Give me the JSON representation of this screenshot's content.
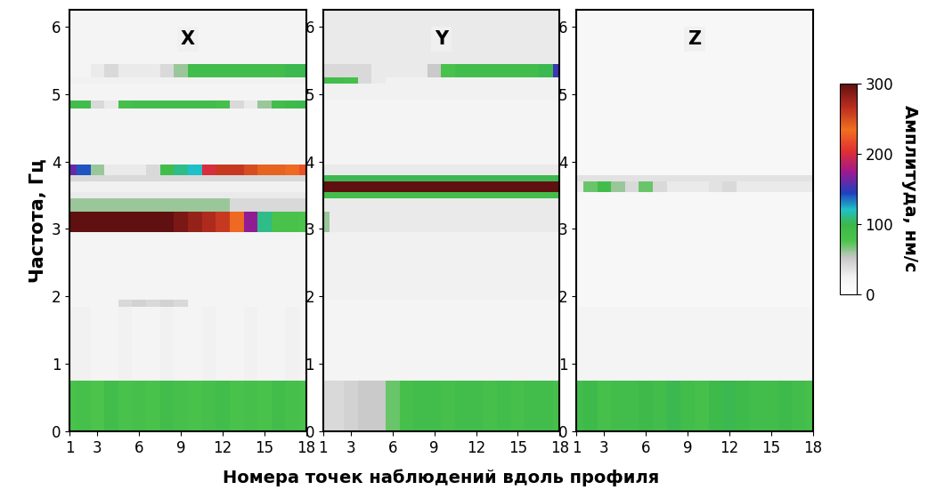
{
  "figure": {
    "xlabel": "Номера точек наблюдений вдоль профиля",
    "ylabel": "Частота, Гц",
    "colorbar": {
      "label": "Амплитуда, нм/с",
      "range": [
        0,
        300
      ],
      "ticks": [
        0,
        100,
        200,
        300
      ]
    }
  },
  "chart_data": [
    {
      "type": "heatmap",
      "title": "X",
      "x": [
        1,
        2,
        3,
        4,
        5,
        6,
        7,
        8,
        9,
        10,
        11,
        12,
        13,
        14,
        15,
        16,
        17,
        18
      ],
      "y_edges": [
        0,
        0.75,
        1.85,
        1.95,
        2.95,
        3.25,
        3.45,
        3.55,
        3.7,
        3.8,
        3.95,
        4.78,
        4.9,
        5.15,
        5.25,
        5.45,
        6.25
      ],
      "xlim": [
        1,
        18
      ],
      "xticks": [
        1,
        3,
        6,
        9,
        12,
        15,
        18
      ],
      "ylim": [
        0,
        6.25
      ],
      "yticks": [
        0,
        1,
        2,
        3,
        4,
        5,
        6
      ],
      "cells": [
        [
          80,
          85,
          75,
          90,
          80,
          85,
          80,
          90,
          85,
          80,
          85,
          90,
          80,
          85,
          80,
          90,
          85,
          80
        ],
        [
          25,
          25,
          20,
          20,
          25,
          20,
          20,
          25,
          20,
          20,
          25,
          20,
          20,
          25,
          20,
          20,
          25,
          20
        ],
        [
          20,
          20,
          20,
          20,
          40,
          45,
          40,
          45,
          40,
          20,
          20,
          20,
          20,
          20,
          20,
          20,
          20,
          20
        ],
        [
          20,
          20,
          20,
          20,
          20,
          20,
          20,
          20,
          20,
          20,
          20,
          20,
          20,
          20,
          20,
          20,
          20,
          20
        ],
        [
          300,
          300,
          300,
          300,
          300,
          300,
          300,
          300,
          290,
          280,
          270,
          260,
          230,
          170,
          110,
          80,
          80,
          75
        ],
        [
          60,
          60,
          60,
          60,
          60,
          60,
          60,
          60,
          60,
          60,
          60,
          60,
          40,
          40,
          40,
          40,
          40,
          40
        ],
        [
          30,
          30,
          30,
          30,
          30,
          30,
          30,
          30,
          30,
          30,
          30,
          30,
          30,
          30,
          30,
          30,
          30,
          30
        ],
        [
          25,
          25,
          25,
          25,
          25,
          25,
          25,
          25,
          25,
          25,
          25,
          25,
          25,
          25,
          25,
          25,
          25,
          25
        ],
        [
          40,
          40,
          40,
          40,
          40,
          40,
          40,
          40,
          40,
          40,
          40,
          40,
          40,
          40,
          40,
          40,
          40,
          40
        ],
        [
          160,
          140,
          60,
          30,
          30,
          30,
          40,
          90,
          110,
          120,
          200,
          260,
          260,
          250,
          240,
          240,
          230,
          220
        ],
        [
          20,
          20,
          20,
          20,
          20,
          20,
          20,
          20,
          20,
          20,
          20,
          20,
          20,
          20,
          20,
          20,
          20,
          20
        ],
        [
          90,
          90,
          40,
          30,
          85,
          90,
          90,
          90,
          90,
          90,
          90,
          85,
          40,
          30,
          60,
          90,
          95,
          100
        ],
        [
          20,
          20,
          20,
          20,
          20,
          20,
          20,
          20,
          20,
          20,
          20,
          20,
          20,
          20,
          20,
          20,
          20,
          20
        ],
        [
          25,
          25,
          25,
          25,
          25,
          25,
          25,
          25,
          25,
          25,
          25,
          25,
          25,
          25,
          25,
          25,
          25,
          25
        ],
        [
          20,
          20,
          30,
          40,
          30,
          30,
          30,
          40,
          60,
          90,
          90,
          90,
          90,
          90,
          90,
          90,
          100,
          100
        ],
        [
          20,
          20,
          20,
          20,
          20,
          20,
          20,
          20,
          20,
          20,
          20,
          20,
          20,
          20,
          20,
          20,
          20,
          20
        ]
      ]
    },
    {
      "type": "heatmap",
      "title": "Y",
      "x": [
        1,
        2,
        3,
        4,
        5,
        6,
        7,
        8,
        9,
        10,
        11,
        12,
        13,
        14,
        15,
        16,
        17,
        18
      ],
      "y_edges": [
        0,
        0.75,
        1.85,
        1.95,
        2.95,
        3.25,
        3.45,
        3.55,
        3.7,
        3.8,
        3.95,
        4.78,
        4.9,
        5.15,
        5.25,
        5.45,
        6.25
      ],
      "xlim": [
        1,
        18
      ],
      "xticks": [
        1,
        3,
        6,
        9,
        12,
        15,
        18
      ],
      "ylim": [
        0,
        6.25
      ],
      "yticks": [
        0,
        1,
        2,
        3,
        4,
        5,
        6
      ],
      "cells": [
        [
          40,
          40,
          45,
          50,
          50,
          70,
          85,
          90,
          90,
          85,
          90,
          90,
          85,
          90,
          85,
          90,
          90,
          85
        ],
        [
          20,
          20,
          20,
          20,
          20,
          20,
          20,
          20,
          20,
          20,
          20,
          20,
          20,
          20,
          20,
          20,
          20,
          20
        ],
        [
          20,
          20,
          20,
          20,
          20,
          20,
          20,
          20,
          20,
          20,
          20,
          20,
          20,
          20,
          20,
          20,
          20,
          20
        ],
        [
          25,
          25,
          25,
          25,
          25,
          25,
          25,
          25,
          25,
          25,
          25,
          25,
          25,
          25,
          25,
          25,
          25,
          25
        ],
        [
          60,
          30,
          30,
          30,
          30,
          30,
          30,
          30,
          30,
          30,
          30,
          30,
          30,
          30,
          30,
          30,
          30,
          30
        ],
        [
          30,
          30,
          30,
          30,
          30,
          30,
          30,
          30,
          30,
          30,
          30,
          30,
          30,
          30,
          30,
          30,
          30,
          30
        ],
        [
          90,
          90,
          90,
          90,
          90,
          90,
          90,
          90,
          90,
          90,
          90,
          90,
          90,
          90,
          90,
          90,
          90,
          90
        ],
        [
          300,
          300,
          300,
          300,
          300,
          300,
          300,
          300,
          300,
          300,
          300,
          300,
          300,
          300,
          300,
          300,
          300,
          300
        ],
        [
          100,
          100,
          100,
          100,
          100,
          100,
          100,
          100,
          100,
          100,
          100,
          100,
          100,
          100,
          100,
          100,
          100,
          100
        ],
        [
          30,
          30,
          30,
          30,
          30,
          30,
          30,
          30,
          30,
          30,
          30,
          30,
          30,
          30,
          30,
          30,
          30,
          30
        ],
        [
          20,
          20,
          20,
          20,
          20,
          20,
          20,
          20,
          20,
          20,
          20,
          20,
          20,
          20,
          20,
          20,
          20,
          20
        ],
        [
          20,
          20,
          20,
          20,
          20,
          20,
          20,
          20,
          20,
          20,
          20,
          20,
          20,
          20,
          20,
          20,
          20,
          20
        ],
        [
          25,
          25,
          25,
          25,
          25,
          25,
          25,
          25,
          25,
          25,
          25,
          25,
          25,
          25,
          25,
          25,
          25,
          25
        ],
        [
          90,
          90,
          85,
          40,
          30,
          25,
          25,
          25,
          25,
          25,
          25,
          25,
          25,
          25,
          25,
          25,
          25,
          25
        ],
        [
          40,
          40,
          40,
          40,
          30,
          30,
          30,
          30,
          50,
          80,
          90,
          90,
          90,
          90,
          90,
          90,
          100,
          150
        ],
        [
          30,
          30,
          30,
          30,
          30,
          30,
          30,
          30,
          30,
          30,
          30,
          30,
          30,
          30,
          30,
          30,
          30,
          30
        ]
      ]
    },
    {
      "type": "heatmap",
      "title": "Z",
      "x": [
        1,
        2,
        3,
        4,
        5,
        6,
        7,
        8,
        9,
        10,
        11,
        12,
        13,
        14,
        15,
        16,
        17,
        18
      ],
      "y_edges": [
        0,
        0.75,
        1.85,
        1.95,
        2.95,
        3.25,
        3.45,
        3.55,
        3.7,
        3.8,
        3.95,
        4.78,
        4.9,
        5.15,
        5.25,
        5.45,
        6.25
      ],
      "xlim": [
        1,
        18
      ],
      "xticks": [
        1,
        3,
        6,
        9,
        12,
        15,
        18
      ],
      "ylim": [
        0,
        6.25
      ],
      "yticks": [
        0,
        1,
        2,
        3,
        4,
        5,
        6
      ],
      "cells": [
        [
          90,
          95,
          85,
          90,
          90,
          95,
          90,
          100,
          90,
          85,
          95,
          100,
          95,
          90,
          90,
          95,
          90,
          85
        ],
        [
          20,
          20,
          20,
          20,
          20,
          20,
          20,
          20,
          20,
          20,
          20,
          20,
          20,
          20,
          20,
          20,
          20,
          20
        ],
        [
          15,
          15,
          15,
          15,
          15,
          15,
          15,
          15,
          15,
          15,
          15,
          15,
          15,
          15,
          15,
          15,
          15,
          15
        ],
        [
          15,
          15,
          15,
          15,
          15,
          15,
          15,
          15,
          15,
          15,
          15,
          15,
          15,
          15,
          15,
          15,
          15,
          15
        ],
        [
          15,
          15,
          15,
          15,
          15,
          15,
          15,
          15,
          15,
          15,
          15,
          15,
          15,
          15,
          15,
          15,
          15,
          15
        ],
        [
          15,
          15,
          15,
          15,
          15,
          15,
          15,
          15,
          15,
          15,
          15,
          15,
          15,
          15,
          15,
          15,
          15,
          15
        ],
        [
          15,
          15,
          15,
          15,
          15,
          15,
          15,
          15,
          15,
          15,
          15,
          15,
          15,
          15,
          15,
          15,
          15,
          15
        ],
        [
          30,
          70,
          90,
          60,
          40,
          70,
          40,
          30,
          30,
          30,
          35,
          40,
          30,
          30,
          30,
          30,
          30,
          30
        ],
        [
          35,
          35,
          35,
          35,
          35,
          35,
          35,
          35,
          35,
          35,
          35,
          35,
          35,
          35,
          35,
          35,
          35,
          35
        ],
        [
          15,
          15,
          15,
          15,
          15,
          15,
          15,
          15,
          15,
          15,
          15,
          15,
          15,
          15,
          15,
          15,
          15,
          15
        ],
        [
          15,
          15,
          15,
          15,
          15,
          15,
          15,
          15,
          15,
          15,
          15,
          15,
          15,
          15,
          15,
          15,
          15,
          15
        ],
        [
          15,
          15,
          15,
          15,
          15,
          15,
          15,
          15,
          15,
          15,
          15,
          15,
          15,
          15,
          15,
          15,
          15,
          15
        ],
        [
          15,
          15,
          15,
          15,
          15,
          15,
          15,
          15,
          15,
          15,
          15,
          15,
          15,
          15,
          15,
          15,
          15,
          15
        ],
        [
          15,
          15,
          15,
          15,
          15,
          15,
          15,
          15,
          15,
          15,
          15,
          15,
          15,
          15,
          15,
          15,
          15,
          15
        ],
        [
          15,
          15,
          15,
          15,
          15,
          15,
          15,
          15,
          15,
          15,
          15,
          15,
          15,
          15,
          15,
          15,
          15,
          15
        ],
        [
          15,
          15,
          15,
          15,
          15,
          15,
          15,
          15,
          15,
          15,
          15,
          15,
          15,
          15,
          15,
          15,
          15,
          15
        ]
      ]
    }
  ]
}
